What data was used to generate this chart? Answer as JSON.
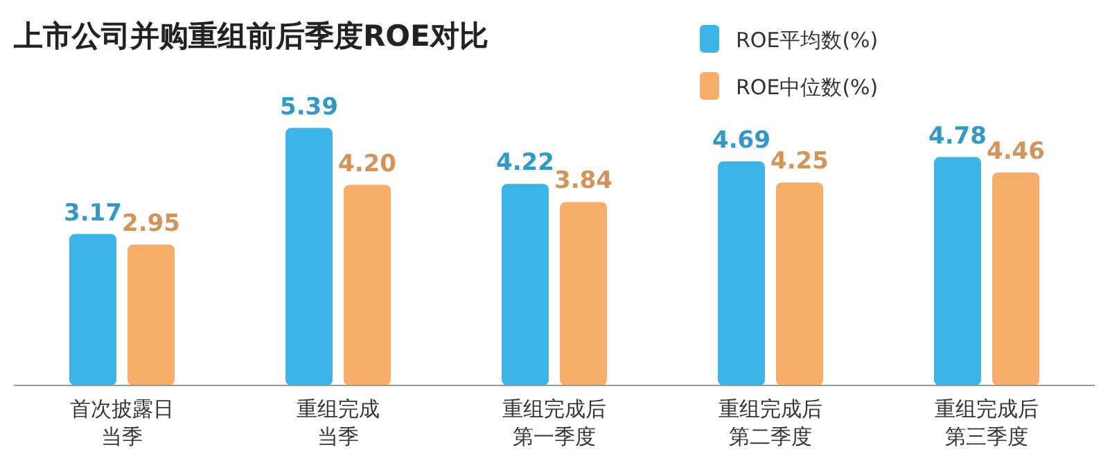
{
  "chart_data": {
    "type": "bar",
    "title": "上市公司并购重组前后季度ROE对比",
    "categories": [
      "首次披露日当季",
      "重组完成当季",
      "重组完成后第一季度",
      "重组完成后第二季度",
      "重组完成后第三季度"
    ],
    "series": [
      {
        "name": "ROE平均数(%)",
        "color": "#3cb4e6",
        "values": [
          3.17,
          5.39,
          4.22,
          4.69,
          4.78
        ],
        "value_labels": [
          "3.17",
          "5.39",
          "4.22",
          "4.69",
          "4.78"
        ]
      },
      {
        "name": "ROE中位数(%)",
        "color": "#f7ae6a",
        "values": [
          2.95,
          4.2,
          3.84,
          4.25,
          4.46
        ],
        "value_labels": [
          "2.95",
          "4.20",
          "3.84",
          "4.25",
          "4.46"
        ]
      }
    ],
    "tick_labels": "x",
    "legend": "top right",
    "grid": false
  }
}
